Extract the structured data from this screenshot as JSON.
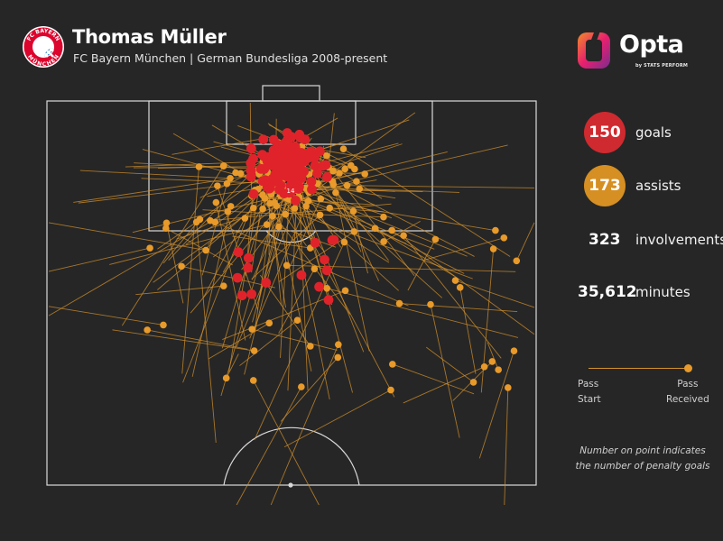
{
  "header": {
    "title": "Thomas Müller",
    "subtitle": "FC Bayern München | German Bundesliga 2008-present",
    "crest_text_top": "FC BAYERN",
    "crest_text_bottom": "MÜNCHEN"
  },
  "brand": {
    "name": "Opta",
    "sub": "by STATS PERFORM"
  },
  "stats": [
    {
      "value": "150",
      "label": "goals",
      "color": "#d8232a"
    },
    {
      "value": "173",
      "label": "assists",
      "color": "#e89a2a"
    },
    {
      "value": "323",
      "label": "involvements"
    },
    {
      "value": "35,612",
      "label": "minutes"
    }
  ],
  "legend": {
    "start_lines": [
      "Pass",
      "Start"
    ],
    "end_lines": [
      "Pass",
      "Received"
    ]
  },
  "note_lines": [
    "Number on point indicates",
    "the number of penalty goals"
  ],
  "colors": {
    "goal": "#e0232b",
    "assist": "#e89a2a",
    "assist_line": "#d4922c",
    "pitch_lines": "#d9d9d9",
    "background": "#262626"
  },
  "chart_data": {
    "type": "scatter",
    "pitch": "attacking half, goal at top",
    "series": [
      {
        "name": "goals",
        "count": 150
      },
      {
        "name": "assists",
        "count": 173
      }
    ],
    "penalty_label": "14"
  }
}
